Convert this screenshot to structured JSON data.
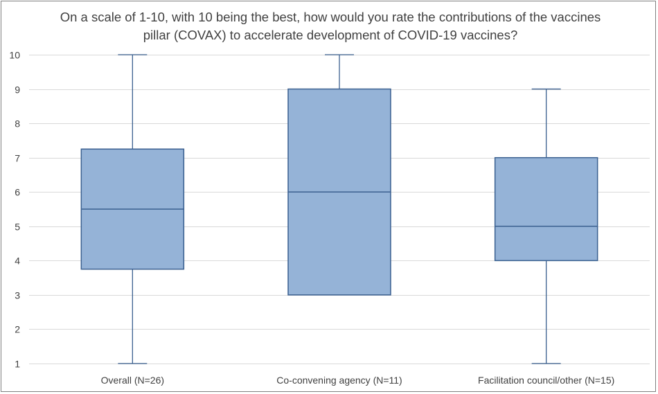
{
  "chart_data": {
    "type": "box",
    "title": "On a scale of 1-10, with 10 being the best, how would you rate the contributions of the vaccines\npillar (COVAX) to accelerate development of COVID-19 vaccines?",
    "xlabel": "",
    "ylabel": "",
    "ylim": [
      1,
      10
    ],
    "yticks": [
      1,
      2,
      3,
      4,
      5,
      6,
      7,
      8,
      9,
      10
    ],
    "grid": true,
    "legend": "none",
    "categories": [
      "Overall (N=26)",
      "Co-convening agency (N=11)",
      "Facilitation council/other (N=15)"
    ],
    "boxes": [
      {
        "category": "Overall (N=26)",
        "min": 1,
        "q1": 3.75,
        "median": 5.5,
        "q3": 7.25,
        "max": 10
      },
      {
        "category": "Co-convening agency (N=11)",
        "min": 3,
        "q1": 3,
        "median": 6,
        "q3": 9,
        "max": 10
      },
      {
        "category": "Facilitation council/other (N=15)",
        "min": 1,
        "q1": 4,
        "median": 5,
        "q3": 7,
        "max": 9
      }
    ],
    "colors": {
      "box_fill": "#95b3d7",
      "box_stroke": "#3a5f8f",
      "grid": "#d9d9d9",
      "text": "#404040"
    }
  }
}
